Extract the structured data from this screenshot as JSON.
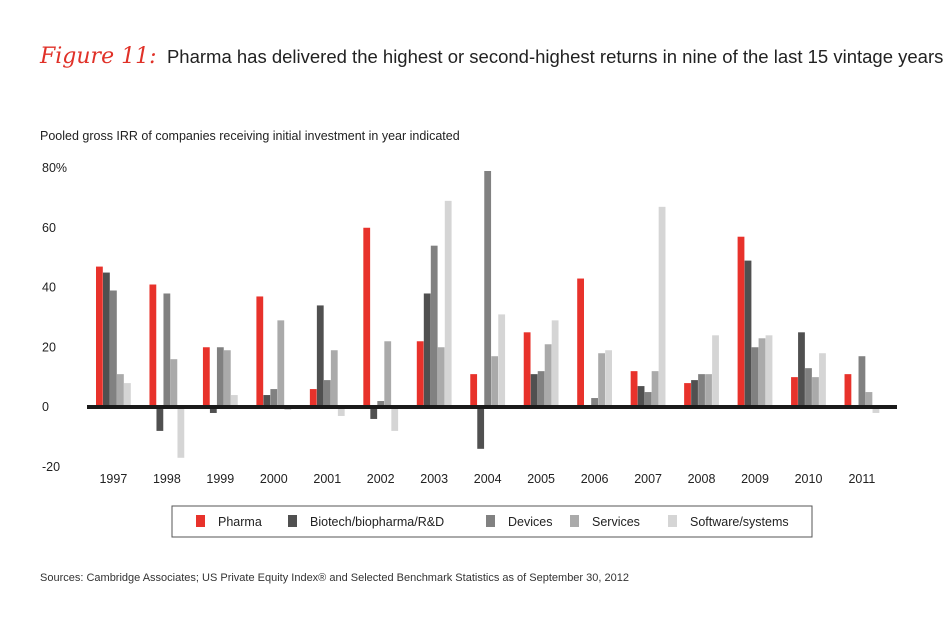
{
  "figure_label": "Figure 11:",
  "title": "Pharma has delivered the highest or second-highest returns in nine of the last 15 vintage years",
  "source": "Sources: Cambridge Associates; US Private Equity Index® and Selected Benchmark Statistics as of September 30, 2012",
  "chart_data": {
    "type": "bar",
    "subtitle": "Pooled gross IRR of companies receiving initial investment in year indicated",
    "categories": [
      "1997",
      "1998",
      "1999",
      "2000",
      "2001",
      "2002",
      "2003",
      "2004",
      "2005",
      "2006",
      "2007",
      "2008",
      "2009",
      "2010",
      "2011"
    ],
    "ylim": [
      -20,
      80
    ],
    "yticks": [
      -20,
      0,
      20,
      40,
      60,
      80
    ],
    "ytick_labels": [
      "-20",
      "0",
      "20",
      "40",
      "60",
      "80%"
    ],
    "legend_position": "bottom",
    "series": [
      {
        "name": "Pharma",
        "color": "#e8322b",
        "values": [
          47,
          41,
          20,
          37,
          6,
          60,
          22,
          11,
          25,
          43,
          12,
          8,
          57,
          10,
          11
        ]
      },
      {
        "name": "Biotech/biopharma/R&D",
        "color": "#505050",
        "values": [
          45,
          -8,
          -2,
          4,
          34,
          -4,
          38,
          -14,
          11,
          0,
          7,
          9,
          49,
          25,
          0
        ]
      },
      {
        "name": "Devices",
        "color": "#818181",
        "values": [
          39,
          38,
          20,
          6,
          9,
          2,
          54,
          79,
          12,
          3,
          5,
          11,
          20,
          13,
          17
        ]
      },
      {
        "name": "Services",
        "color": "#aaaaaa",
        "values": [
          11,
          16,
          19,
          29,
          19,
          22,
          20,
          17,
          21,
          18,
          12,
          11,
          23,
          10,
          5
        ]
      },
      {
        "name": "Software/systems",
        "color": "#d5d5d5",
        "values": [
          8,
          -17,
          4,
          -1,
          -3,
          -8,
          69,
          31,
          29,
          19,
          67,
          24,
          24,
          18,
          -2
        ]
      }
    ]
  }
}
